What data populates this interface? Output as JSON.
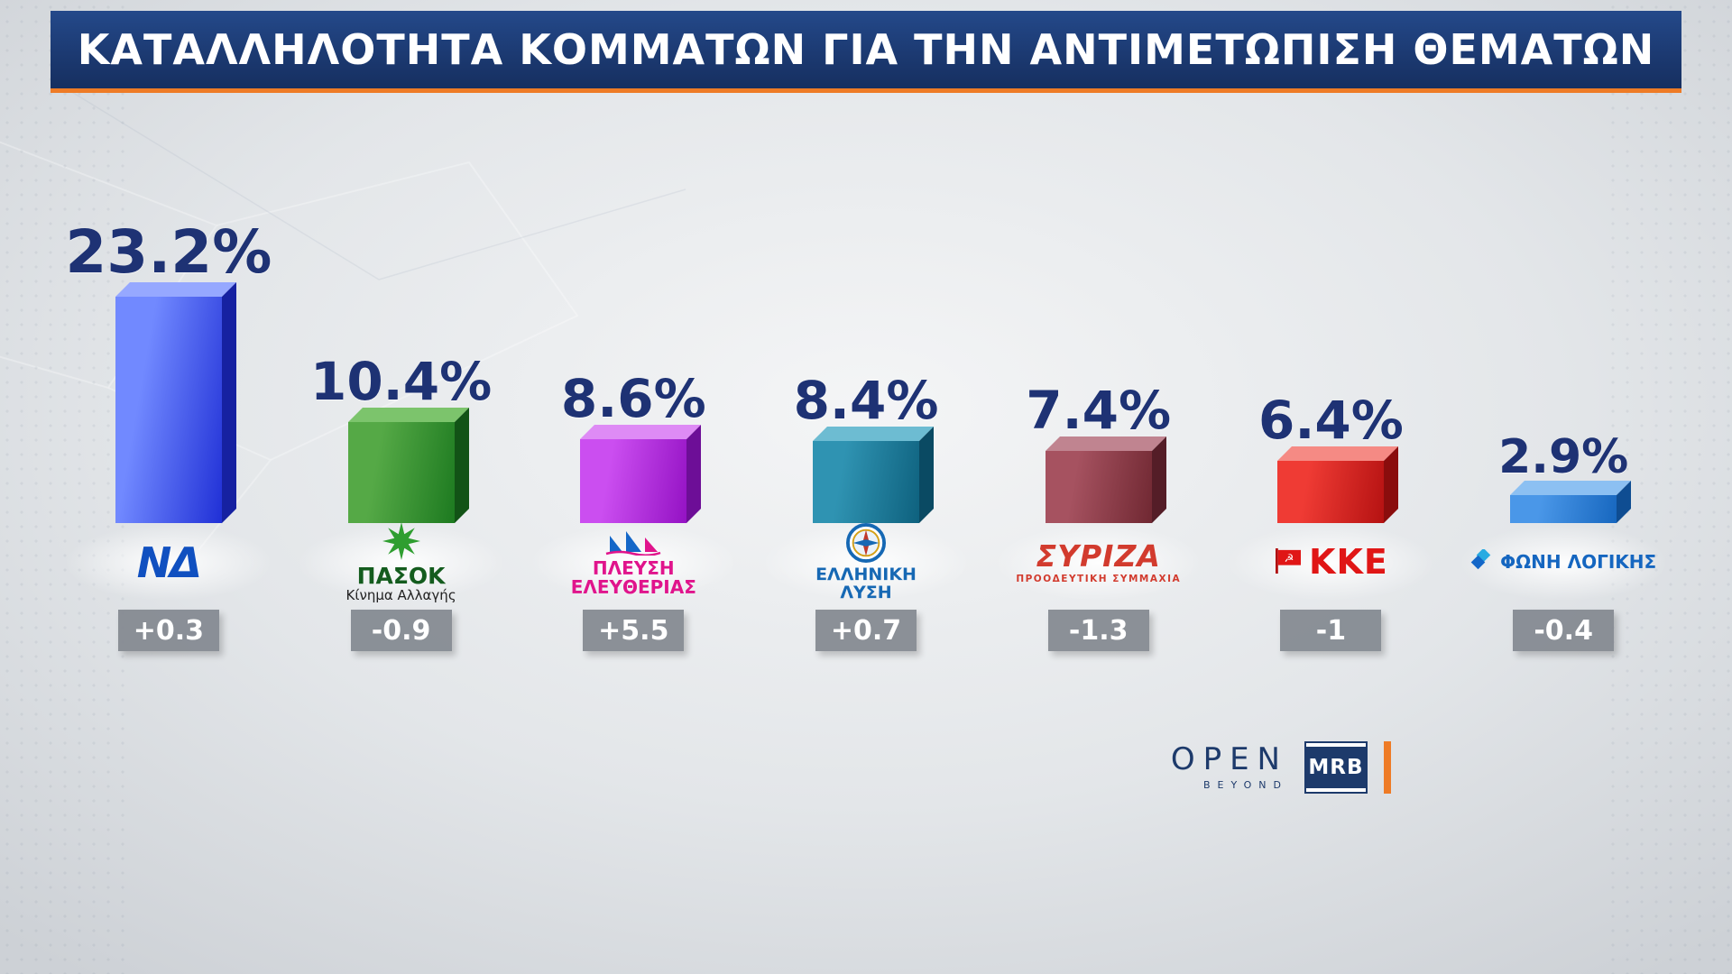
{
  "header": {
    "title": "ΚΑΤΑΛΛΗΛΟΤΗΤΑ ΚΟΜΜΑΤΩΝ ΓΙΑ ΤΗΝ ΑΝΤΙΜΕΤΩΠΙΣΗ ΘΕΜΑΤΩΝ",
    "background_color": "#1c3a72",
    "accent_color": "#ee7b26"
  },
  "chart_data": {
    "type": "bar",
    "title": "ΚΑΤΑΛΛΗΛΟΤΗΤΑ ΚΟΜΜΑΤΩΝ ΓΙΑ ΤΗΝ ΑΝΤΙΜΕΤΩΠΙΣΗ ΘΕΜΑΤΩΝ",
    "ylim": [
      0,
      25
    ],
    "grid": false,
    "legend": false,
    "value_label_color": "#1e3274",
    "change_box_color": "#83898f",
    "categories": [
      "ΝΔ",
      "ΠΑΣΟΚ Κίνημα Αλλαγής",
      "ΠΛΕΥΣΗ ΕΛΕΥΘΕΡΙΑΣ",
      "ΕΛΛΗΝΙΚΗ ΛΥΣΗ",
      "ΣΥΡΙΖΑ ΠΡΟΟΔΕΥΤΙΚΗ ΣΥΜΜΑΧΙΑ",
      "ΚΚΕ",
      "ΦΩΝΗ ΛΟΓΙΚΗΣ"
    ],
    "values": [
      23.2,
      10.4,
      8.6,
      8.4,
      7.4,
      6.4,
      2.9
    ],
    "changes": [
      "+0.3",
      "-0.9",
      "+5.5",
      "+0.7",
      "-1.3",
      "-1",
      "-0.4"
    ],
    "bars": [
      {
        "id": "nd",
        "party": "ΝΔ",
        "value": 23.2,
        "value_label": "23.2%",
        "change": "+0.3",
        "logo_lines": [
          "ΝΔ"
        ],
        "logo_color": "#1050c0",
        "color_front_light": "#7189ff",
        "color_front_dark": "#2030d6",
        "color_side": "#1722a6",
        "color_top": "#96a8ff"
      },
      {
        "id": "pasok",
        "party": "ΠΑΣΟΚ",
        "value": 10.4,
        "value_label": "10.4%",
        "change": "-0.9",
        "logo_lines": [
          "ΠΑΣΟΚ",
          "Κίνημα Αλλαγής"
        ],
        "logo_color": "#145c1e",
        "color_front_light": "#55a946",
        "color_front_dark": "#1d7a20",
        "color_side": "#135617",
        "color_top": "#7cc46c"
      },
      {
        "id": "plefsi",
        "party": "ΠΛΕΥΣΗ ΕΛΕΥΘΕΡΙΑΣ",
        "value": 8.6,
        "value_label": "8.6%",
        "change": "+5.5",
        "logo_lines": [
          "ΠΛΕΥΣΗ",
          "ΕΛΕΥΘΕΡΙΑΣ"
        ],
        "logo_color": "#e0148c",
        "color_front_light": "#cb4ef0",
        "color_front_dark": "#9412c4",
        "color_side": "#700e9c",
        "color_top": "#de8bf5"
      },
      {
        "id": "ellysi",
        "party": "ΕΛΛΗΝΙΚΗ ΛΥΣΗ",
        "value": 8.4,
        "value_label": "8.4%",
        "change": "+0.7",
        "logo_lines": [
          "ΕΛΛΗΝΙΚΗ",
          "ΛΥΣΗ"
        ],
        "logo_color": "#1668b4",
        "color_front_light": "#2f93b2",
        "color_front_dark": "#0e617e",
        "color_side": "#0a4c66",
        "color_top": "#6dbcd2"
      },
      {
        "id": "syriza",
        "party": "ΣΥΡΙΖΑ",
        "value": 7.4,
        "value_label": "7.4%",
        "change": "-1.3",
        "logo_lines": [
          "ΣΥΡΙΖΑ",
          "ΠΡΟΟΔΕΥΤΙΚΗ ΣΥΜΜΑΧΙΑ"
        ],
        "logo_color": "#d23b2e",
        "color_front_light": "#a65260",
        "color_front_dark": "#702832",
        "color_side": "#571e28",
        "color_top": "#c08490"
      },
      {
        "id": "kke",
        "party": "ΚΚΕ",
        "value": 6.4,
        "value_label": "6.4%",
        "change": "-1",
        "logo_lines": [
          "ΚΚΕ"
        ],
        "logo_color": "#e01616",
        "color_front_light": "#ef3b34",
        "color_front_dark": "#b51212",
        "color_side": "#8e0d0d",
        "color_top": "#f58a84"
      },
      {
        "id": "foni",
        "party": "ΦΩΝΗ ΛΟΓΙΚΗΣ",
        "value": 2.9,
        "value_label": "2.9%",
        "change": "-0.4",
        "logo_lines": [
          "ΦΩΝΗ ΛΟΓΙΚΗΣ"
        ],
        "logo_color": "#1566c0",
        "color_front_light": "#4a97e8",
        "color_front_dark": "#1767bf",
        "color_side": "#0f4f96",
        "color_top": "#8cc0f2"
      }
    ]
  },
  "footer": {
    "open_logo": "OPEN",
    "open_sub": "BEYOND",
    "mrb_logo": "MRB",
    "accent_color": "#ee7b26"
  }
}
